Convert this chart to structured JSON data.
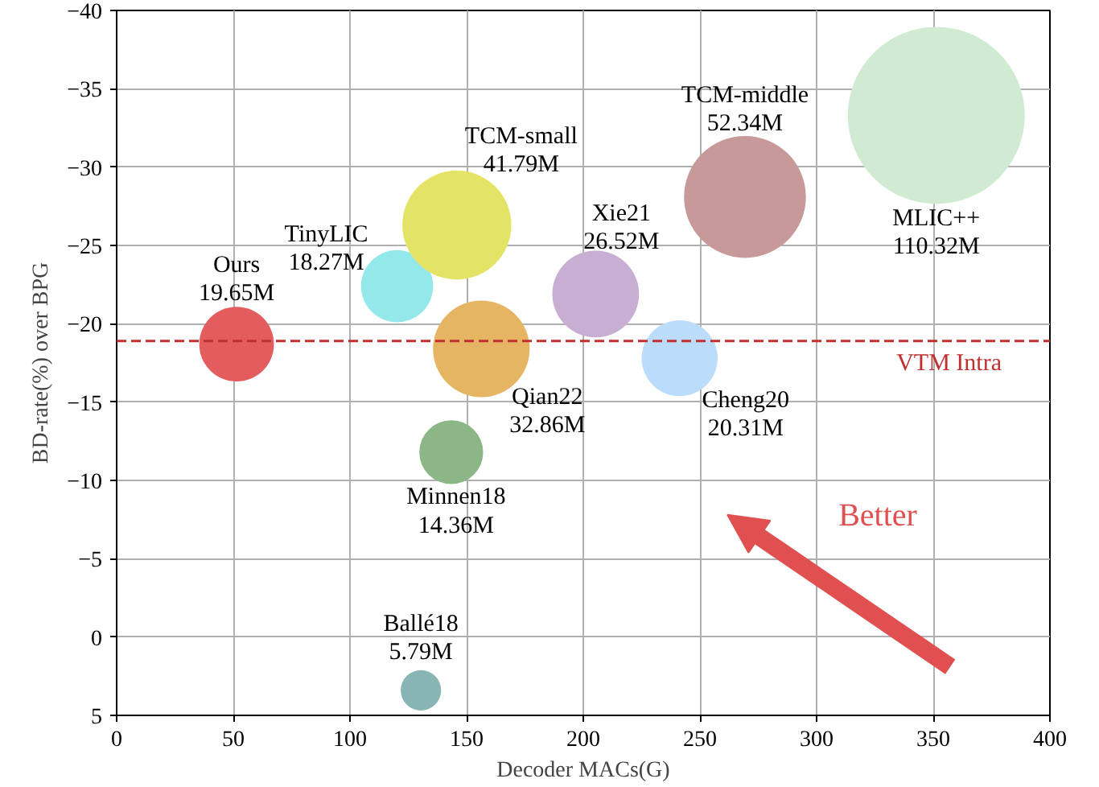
{
  "chart_data": {
    "type": "bubble",
    "xlabel": "Decoder MACs(G)",
    "ylabel": "BD-rate(%) over BPG",
    "series": [
      {
        "name": "Ours\n19.65M",
        "color": "#e35d5e",
        "x": [
          51.4
        ],
        "values": [
          -18.7
        ],
        "sizes": [
          0.178
        ]
      },
      {
        "name": "TinyLIC\n18.27M",
        "color": "#93e9ea",
        "x": [
          120.2
        ],
        "values": [
          -22.4
        ],
        "sizes": [
          0.166
        ]
      },
      {
        "name": "TCM-small\n41.79M",
        "color": "#e3e365",
        "x": [
          145.8
        ],
        "values": [
          -26.3
        ],
        "sizes": [
          0.379
        ]
      },
      {
        "name": "Qian22\n32.86M",
        "color": "#e5b563",
        "x": [
          156.3
        ],
        "values": [
          -18.4
        ],
        "sizes": [
          0.298
        ]
      },
      {
        "name": "Xie21\n26.52M",
        "color": "#c8aed2",
        "x": [
          205.3
        ],
        "values": [
          -21.9
        ],
        "sizes": [
          0.24
        ]
      },
      {
        "name": "Cheng20\n20.31M",
        "color": "#bbdcfb",
        "x": [
          241.3
        ],
        "values": [
          -17.8
        ],
        "sizes": [
          0.184
        ]
      },
      {
        "name": "TCM-middle\n52.34M",
        "color": "#c79999",
        "x": [
          269.3
        ],
        "values": [
          -28.1
        ],
        "sizes": [
          0.474
        ]
      },
      {
        "name": "MLIC++\n110.32M",
        "color": "#d1ebd3",
        "x": [
          351.3
        ],
        "values": [
          -33.3
        ],
        "sizes": [
          1
        ]
      },
      {
        "name": "Minnen18\n14.36M",
        "color": "#8bb787",
        "x": [
          143.4
        ],
        "values": [
          -11.8
        ],
        "sizes": [
          0.13
        ]
      },
      {
        "name": "Ballé18\n5.79M",
        "color": "#88b4b4",
        "x": [
          130.4
        ],
        "values": [
          3.4
        ],
        "sizes": [
          0.052
        ]
      }
    ],
    "xlim": [
      0,
      400
    ],
    "ylim": [
      5,
      -40
    ],
    "xticks": [
      0,
      50,
      100,
      150,
      200,
      250,
      300,
      350,
      400
    ],
    "yticks": [
      {
        "value": -40,
        "label": "−40"
      },
      {
        "value": -35,
        "label": "−35"
      },
      {
        "value": -30,
        "label": "−30"
      },
      {
        "value": -25,
        "label": "−25"
      },
      {
        "value": -20,
        "label": "−20"
      },
      {
        "value": -15,
        "label": "−15"
      },
      {
        "value": -10,
        "label": "−10"
      },
      {
        "value": -5,
        "label": "−5"
      },
      0,
      5
    ],
    "grid": true,
    "ref_lines": [
      {
        "axis": "y",
        "value": -18.9,
        "label": "VTM Intra",
        "color": "#c03030",
        "line_style": "dashed"
      }
    ],
    "annotations": [
      "Better"
    ]
  }
}
